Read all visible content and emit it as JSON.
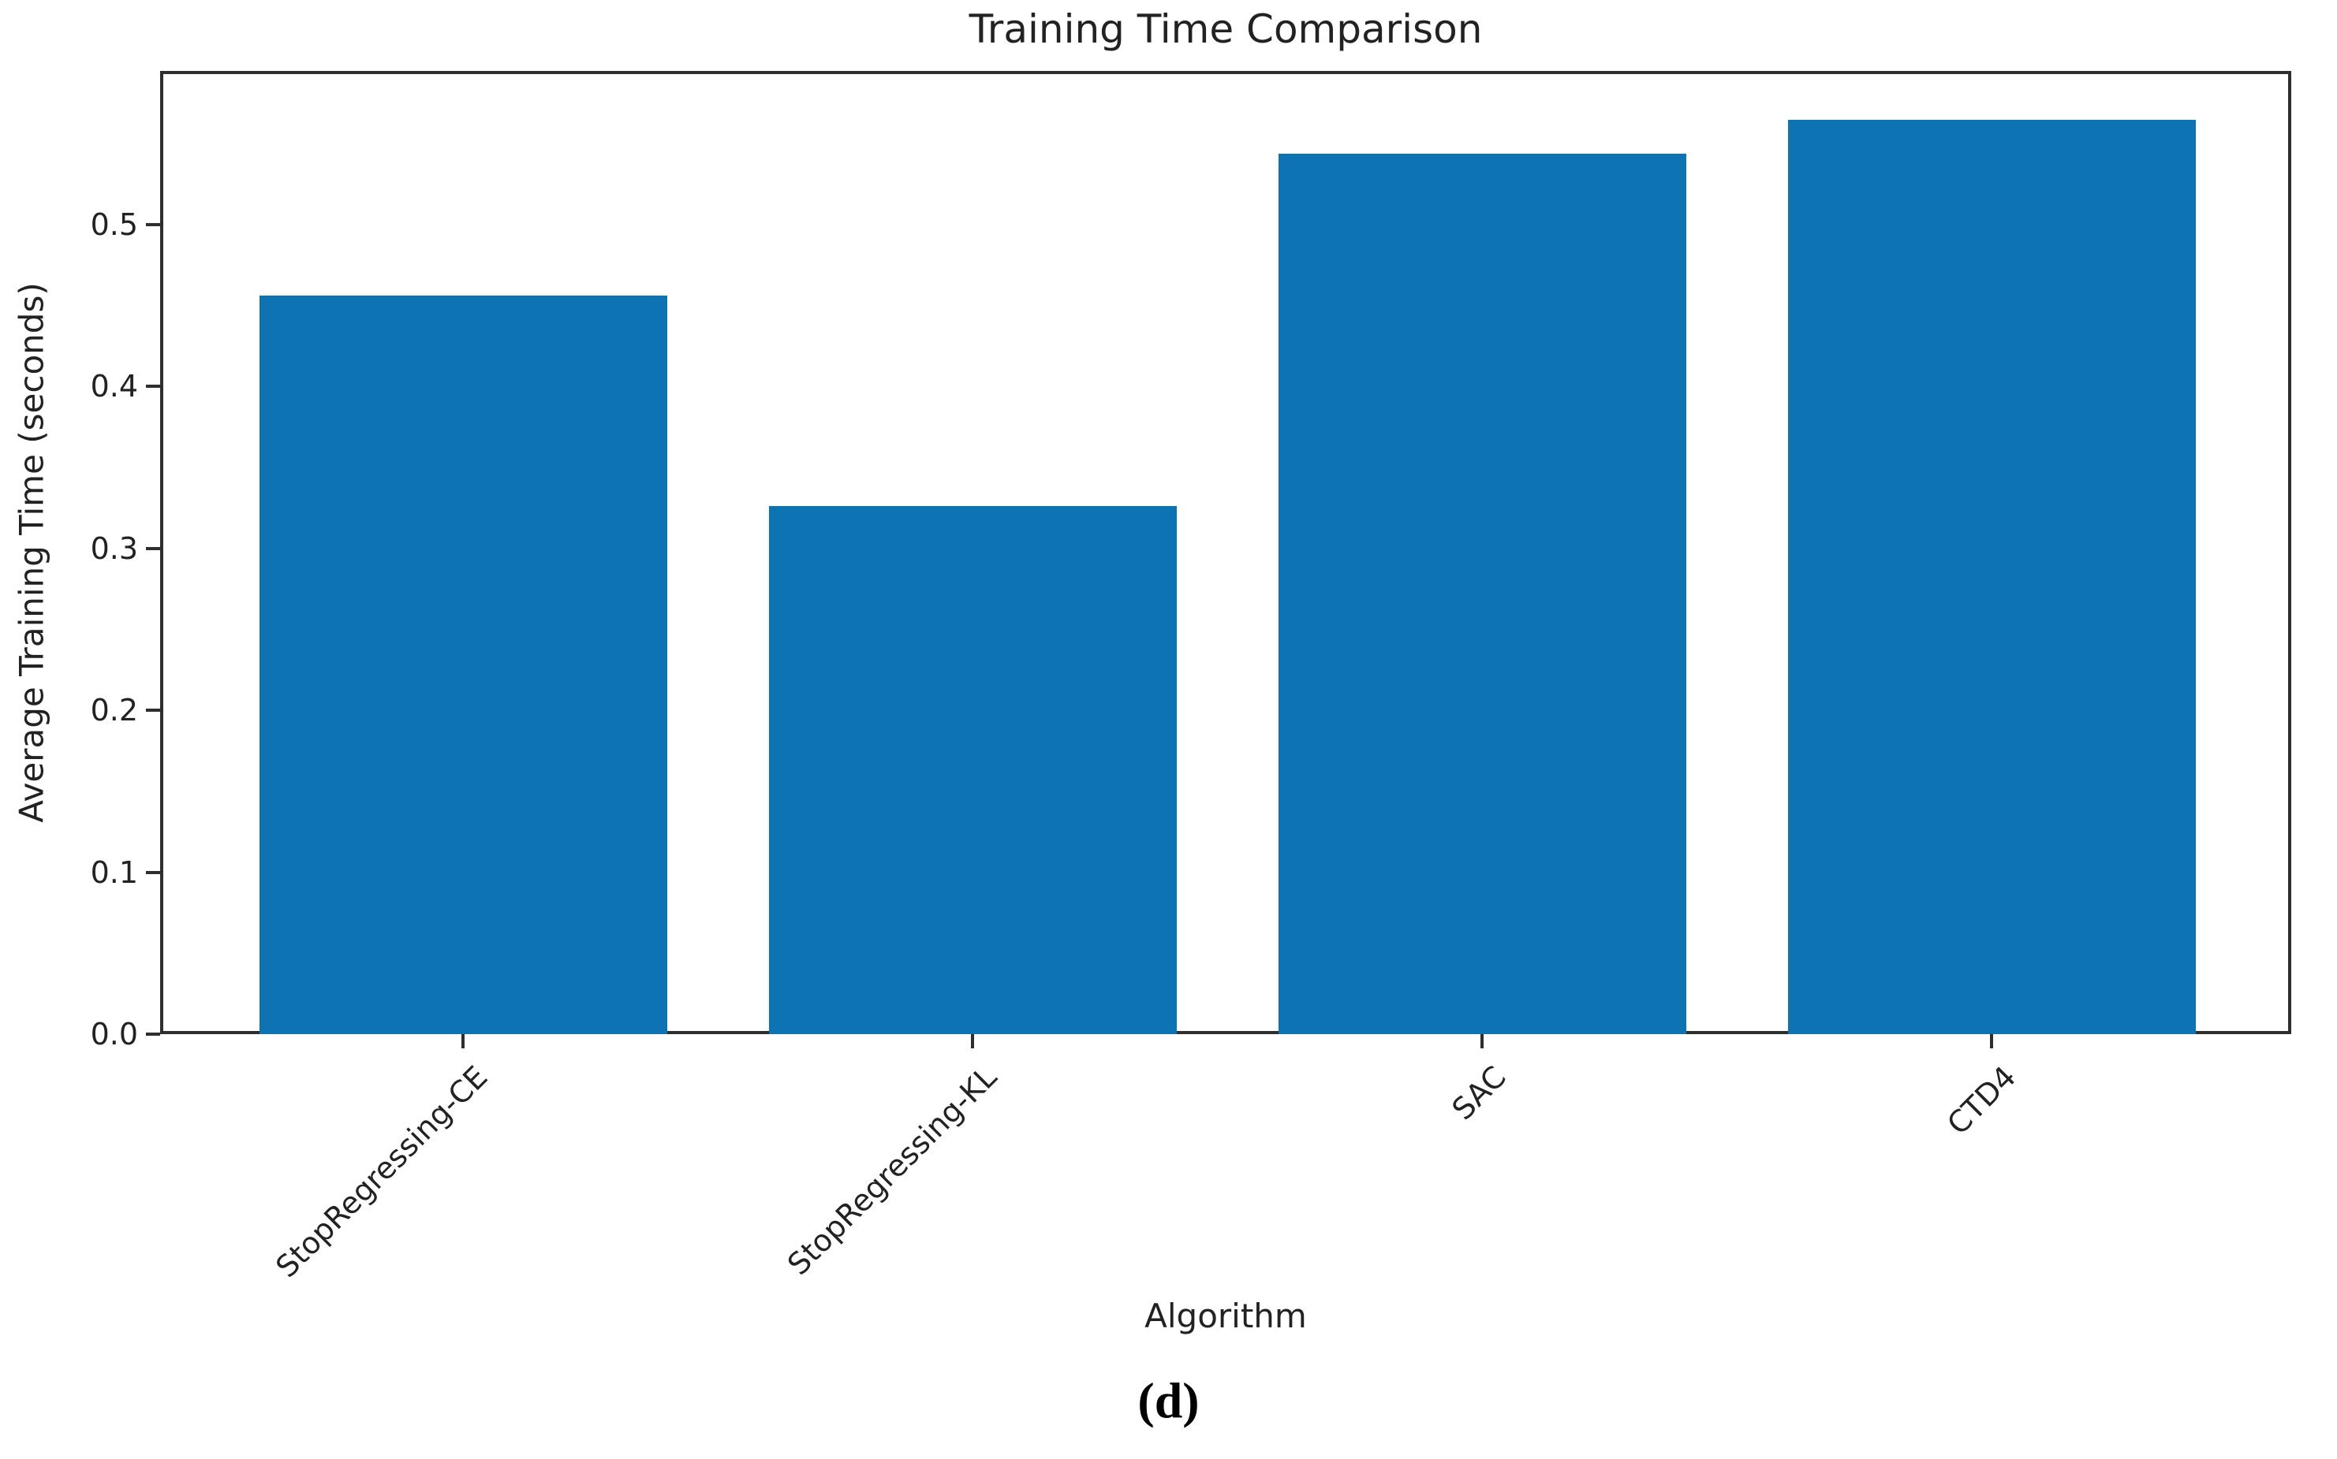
{
  "figure_caption": "(d)",
  "chart_data": {
    "type": "bar",
    "title": "Training Time Comparison",
    "xlabel": "Algorithm",
    "ylabel": "Average Training Time (seconds)",
    "categories": [
      "StopRegressing-CE",
      "StopRegressing-KL",
      "SAC",
      "CTD4"
    ],
    "values": [
      0.456,
      0.326,
      0.544,
      0.565
    ],
    "ylim": [
      0,
      0.595
    ],
    "yticks": [
      0,
      0.1,
      0.2,
      0.3,
      0.4,
      0.5
    ],
    "ytick_labels": [
      "0.0",
      "0.1",
      "0.2",
      "0.3",
      "0.4",
      "0.5"
    ],
    "bar_color": "#0d73b2",
    "axis_color": "#2e2e2e",
    "grid": false,
    "legend_position": "none"
  }
}
